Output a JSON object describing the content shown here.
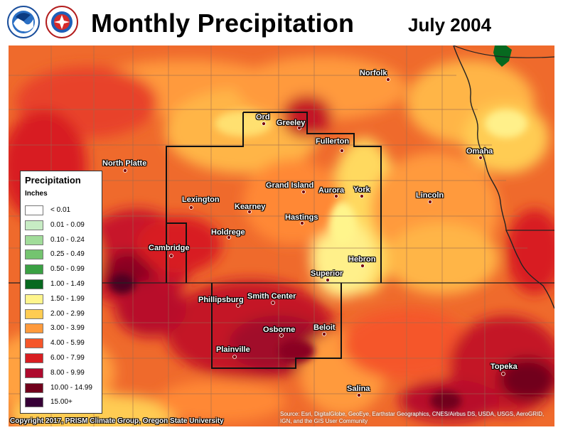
{
  "header": {
    "title": "Monthly Precipitation",
    "period": "July 2004",
    "logos": [
      "noaa-seal-icon",
      "nws-seal-icon"
    ]
  },
  "legend": {
    "title": "Precipitation",
    "units": "Inches",
    "classes": [
      {
        "label": "< 0.01",
        "color": "#ffffff"
      },
      {
        "label": "0.01 - 0.09",
        "color": "#c7ecc4"
      },
      {
        "label": "0.10 - 0.24",
        "color": "#a1dc9a"
      },
      {
        "label": "0.25 - 0.49",
        "color": "#74c46f"
      },
      {
        "label": "0.50 - 0.99",
        "color": "#3aa043"
      },
      {
        "label": "1.00 - 1.49",
        "color": "#07691f"
      },
      {
        "label": "1.50 - 1.99",
        "color": "#fff58c"
      },
      {
        "label": "2.00 - 2.99",
        "color": "#ffcc52"
      },
      {
        "label": "3.00 - 3.99",
        "color": "#ff9a3c"
      },
      {
        "label": "4.00 - 5.99",
        "color": "#f5562a"
      },
      {
        "label": "6.00 - 7.99",
        "color": "#d81e22"
      },
      {
        "label": "8.00 - 9.99",
        "color": "#ae0a2e"
      },
      {
        "label": "10.00 - 14.99",
        "color": "#71001c"
      },
      {
        "label": "15.00+",
        "color": "#360036"
      }
    ]
  },
  "cities": [
    {
      "name": "Norfolk"
    },
    {
      "name": "Ord"
    },
    {
      "name": "Greeley"
    },
    {
      "name": "Fullerton"
    },
    {
      "name": "North Platte"
    },
    {
      "name": "Omaha"
    },
    {
      "name": "Grand Island"
    },
    {
      "name": "Aurora"
    },
    {
      "name": "York"
    },
    {
      "name": "Lincoln"
    },
    {
      "name": "Lexington"
    },
    {
      "name": "Kearney"
    },
    {
      "name": "Hastings"
    },
    {
      "name": "Holdrege"
    },
    {
      "name": "Cambridge"
    },
    {
      "name": "Hebron"
    },
    {
      "name": "Superior"
    },
    {
      "name": "Phillipsburg"
    },
    {
      "name": "Smith Center"
    },
    {
      "name": "Osborne"
    },
    {
      "name": "Beloit"
    },
    {
      "name": "Plainville"
    },
    {
      "name": "Topeka"
    },
    {
      "name": "Salina"
    }
  ],
  "footer": {
    "copyright": "Copyright 2017, PRISM Climate Group, Oregon State University",
    "sources": "Source: Esri, DigitalGlobe, GeoEye, Earthstar Geographics, CNES/Airbus DS, USDA, USGS, AeroGRID, IGN, and the GIS User Community"
  }
}
